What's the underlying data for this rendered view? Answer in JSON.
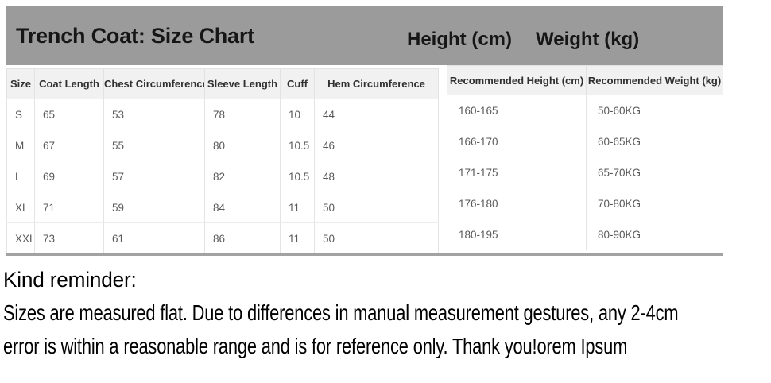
{
  "title_bar": {
    "title": "Trench Coat: Size Chart",
    "height_label": "Height (cm)",
    "weight_label": "Weight (kg)",
    "bg_color": "#9b9b9b"
  },
  "size_table": {
    "columns": [
      "Size",
      "Coat Length",
      "Chest Circumference",
      "Sleeve Length",
      "Cuff",
      "Hem Circumference"
    ],
    "rows": [
      [
        "S",
        "65",
        "53",
        "78",
        "10",
        "44"
      ],
      [
        "M",
        "67",
        "55",
        "80",
        "10.5",
        "46"
      ],
      [
        "L",
        "69",
        "57",
        "82",
        "10.5",
        "48"
      ],
      [
        "XL",
        "71",
        "59",
        "84",
        "11",
        "50"
      ],
      [
        "XXL",
        "73",
        "61",
        "86",
        "11",
        "50"
      ]
    ]
  },
  "recommend_table": {
    "columns": [
      "Recommended Height (cm)",
      "Recommended Weight (kg)"
    ],
    "rows": [
      [
        "160-165",
        "50-60KG"
      ],
      [
        "166-170",
        "60-65KG"
      ],
      [
        "171-175",
        "65-70KG"
      ],
      [
        "176-180",
        "70-80KG"
      ],
      [
        "180-195",
        "80-90KG"
      ]
    ]
  },
  "reminder": {
    "heading": "Kind reminder:",
    "line1": "Sizes are measured flat. Due to differences in manual measurement gestures, any 2-4cm",
    "line2": "error is within a reasonable range and is for reference only. Thank you!orem Ipsum"
  }
}
